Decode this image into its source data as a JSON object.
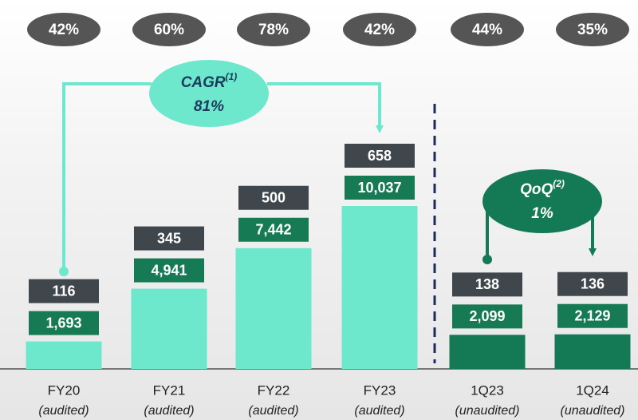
{
  "chart_data": {
    "type": "bar",
    "categories": [
      "FY20",
      "FY21",
      "FY22",
      "FY23",
      "1Q23",
      "1Q24"
    ],
    "category_notes": [
      "(audited)",
      "(audited)",
      "(audited)",
      "(audited)",
      "(unaudited)",
      "(unaudited)"
    ],
    "values": [
      1693,
      4941,
      7442,
      10037,
      2099,
      2129
    ],
    "value_labels": [
      "1,693",
      "4,941",
      "7,442",
      "10,037",
      "2,099",
      "2,129"
    ],
    "colors": [
      "#6ee8cc",
      "#6ee8cc",
      "#6ee8cc",
      "#6ee8cc",
      "#137a55",
      "#137a55"
    ],
    "label_color": "#167a55",
    "top_values": [
      116,
      345,
      500,
      658,
      138,
      136
    ],
    "top_color": "#3f474d",
    "percentages": [
      42,
      60,
      78,
      42,
      44,
      35
    ],
    "percentage_labels": [
      "42%",
      "60%",
      "78%",
      "42%",
      "44%",
      "35%"
    ],
    "cagr": {
      "label": "CAGR",
      "note": "(1)",
      "value": 81,
      "value_label": "81%"
    },
    "qoq": {
      "label": "QoQ",
      "note": "(2)",
      "value": 1,
      "value_label": "1%"
    }
  }
}
